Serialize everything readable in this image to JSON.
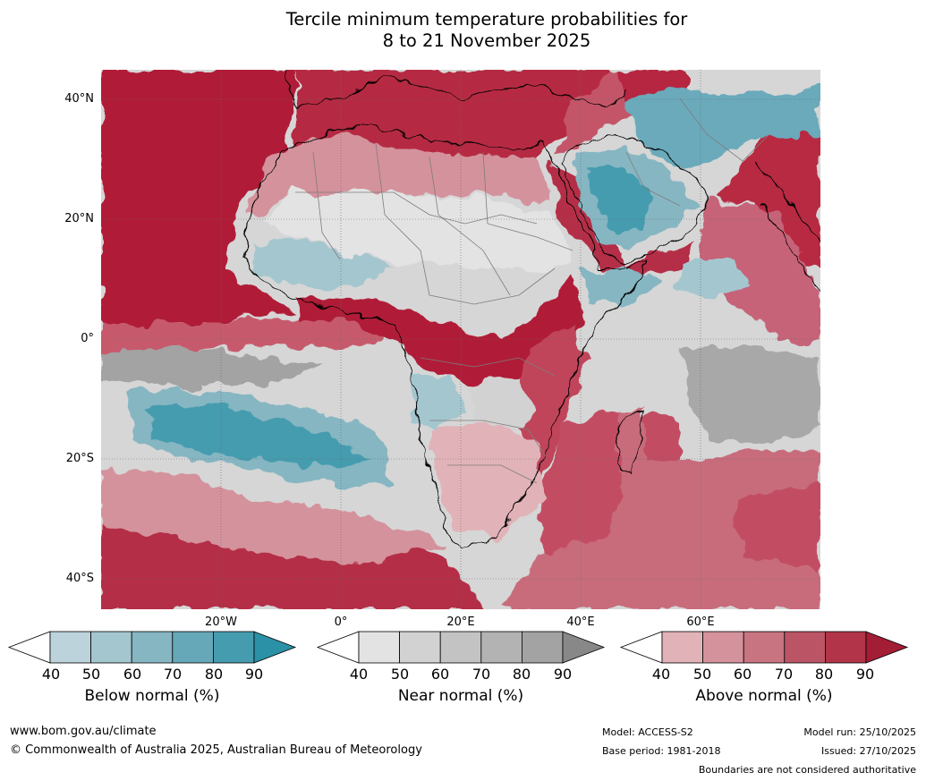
{
  "title": {
    "line1": "Tercile minimum temperature probabilities for",
    "line2": "8 to 21 November 2025"
  },
  "map": {
    "lat_labels": [
      "40°N",
      "20°N",
      "0°",
      "20°S",
      "40°S"
    ],
    "lon_labels": [
      "20°W",
      "0°",
      "20°E",
      "40°E",
      "60°E"
    ]
  },
  "colorbars": [
    {
      "id": "below",
      "label": "Below normal (%)",
      "ticks": [
        "40",
        "50",
        "60",
        "70",
        "80",
        "90"
      ],
      "colors": [
        "#bcd3db",
        "#a4c6cf",
        "#86b6c2",
        "#66a8b8",
        "#459caf"
      ],
      "extend_color": "#2b91a6"
    },
    {
      "id": "near",
      "label": "Near normal (%)",
      "ticks": [
        "40",
        "50",
        "60",
        "70",
        "80",
        "90"
      ],
      "colors": [
        "#e3e3e3",
        "#d2d2d2",
        "#c3c3c3",
        "#b3b3b3",
        "#a3a3a3"
      ],
      "extend_color": "#888888"
    },
    {
      "id": "above",
      "label": "Above normal (%)",
      "ticks": [
        "40",
        "50",
        "60",
        "70",
        "80",
        "90"
      ],
      "colors": [
        "#e1b3b9",
        "#d4929c",
        "#c87581",
        "#bb5566",
        "#b13449"
      ],
      "extend_color": "#a31d35"
    }
  ],
  "footer": {
    "website": "www.bom.gov.au/climate",
    "copyright": "© Commonwealth of Australia 2025, Australian Bureau of Meteorology",
    "model": "Model: ACCESS-S2",
    "base_period": "Base period: 1981-2018",
    "model_run": "Model run: 25/10/2025",
    "issued": "Issued: 27/10/2025",
    "disclaimer": "Boundaries are not considered authoritative"
  }
}
